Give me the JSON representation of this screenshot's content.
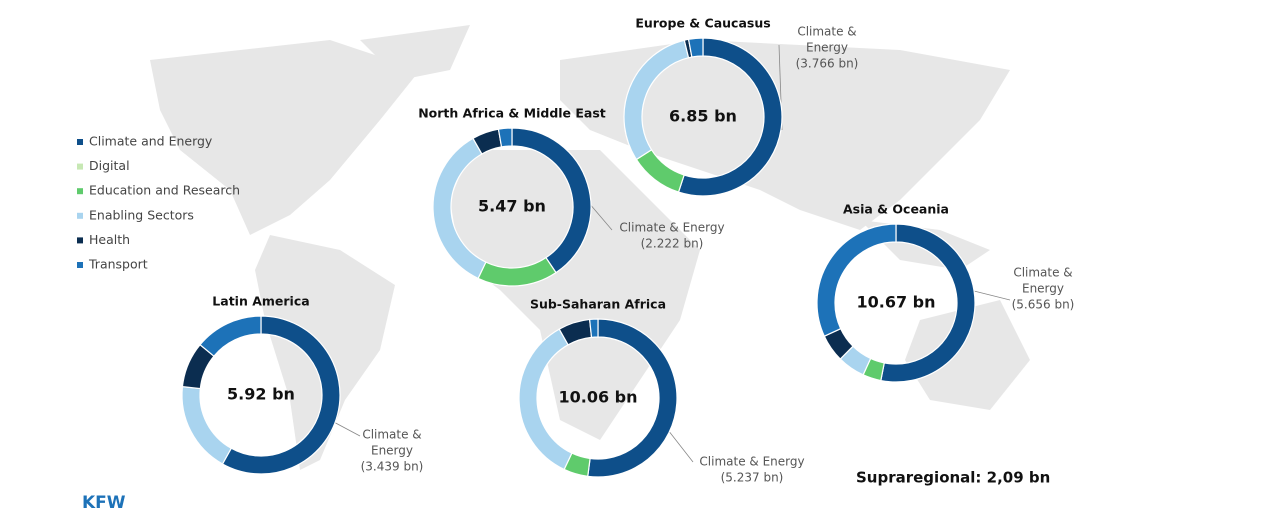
{
  "legend": {
    "categories": [
      "Climate and Energy",
      "Digital",
      "Education and Research",
      "Enabling Sectors",
      "Health",
      "Transport"
    ],
    "colors": [
      "#0e4f8a",
      "#c7e8b4",
      "#5fcb6c",
      "#a9d4ef",
      "#0b2d50",
      "#1d72b8"
    ]
  },
  "chart_data": [
    {
      "type": "donut",
      "title": "Europe & Caucasus",
      "center_label": "6.85 bn",
      "values": [
        3.766,
        null,
        0.75,
        2.07,
        0.06,
        0.2
      ],
      "callout": [
        "Climate &",
        "Energy",
        "(3.766 bn)"
      ]
    },
    {
      "type": "donut",
      "title": "North Africa & Middle East",
      "center_label": "5.47 bn",
      "values": [
        2.222,
        null,
        0.9,
        1.9,
        0.3,
        0.15
      ],
      "callout": [
        "Climate & Energy",
        "(2.222 bn)"
      ]
    },
    {
      "type": "donut",
      "title": "Latin America",
      "center_label": "5.92 bn",
      "values": [
        3.439,
        null,
        null,
        1.1,
        0.55,
        0.83
      ],
      "callout": [
        "Climate &",
        "Energy",
        "(3.439 bn)"
      ]
    },
    {
      "type": "donut",
      "title": "Sub-Saharan Africa",
      "center_label": "10.06 bn",
      "values": [
        5.237,
        null,
        0.5,
        3.5,
        0.65,
        0.17
      ],
      "callout": [
        "Climate & Energy",
        "(5.237 bn)"
      ]
    },
    {
      "type": "donut",
      "title": "Asia & Oceania",
      "center_label": "10.67 bn",
      "values": [
        5.656,
        null,
        0.4,
        0.6,
        0.6,
        3.4
      ],
      "callout": [
        "Climate &",
        "Energy",
        "(5.656 bn)"
      ]
    }
  ],
  "footer": {
    "supraregional": "Supraregional: 2,09 bn",
    "logo": "KFW"
  }
}
